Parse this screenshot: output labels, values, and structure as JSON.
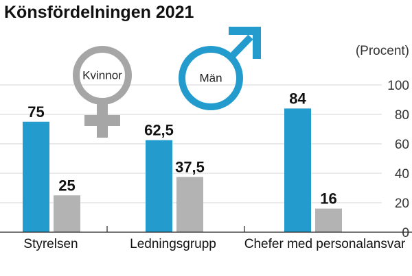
{
  "chart_data": {
    "type": "bar",
    "title": "Könsfördelningen 2021",
    "ylabel": "(Procent)",
    "ylim": [
      0,
      100
    ],
    "yticks": [
      "0",
      "20",
      "40",
      "60",
      "80",
      "100"
    ],
    "categories": [
      "Styrelsen",
      "Ledningsgrupp",
      "Chefer med personalansvar"
    ],
    "series": [
      {
        "name": "Män",
        "color": "#239bcc",
        "values": [
          75,
          62.5,
          84
        ],
        "labels": [
          "75",
          "62,5",
          "84"
        ]
      },
      {
        "name": "Kvinnor",
        "color": "#b3b3b3",
        "values": [
          25,
          37.5,
          16
        ],
        "labels": [
          "25",
          "37,5",
          "16"
        ]
      }
    ],
    "grid": true,
    "legend": "symbols-top"
  },
  "legend": {
    "female_label": "Kvinnor",
    "female_icon": "venus-symbol-icon",
    "female_color": "#a6a6a6",
    "male_label": "Män",
    "male_icon": "mars-symbol-icon",
    "male_color": "#239bcc"
  }
}
